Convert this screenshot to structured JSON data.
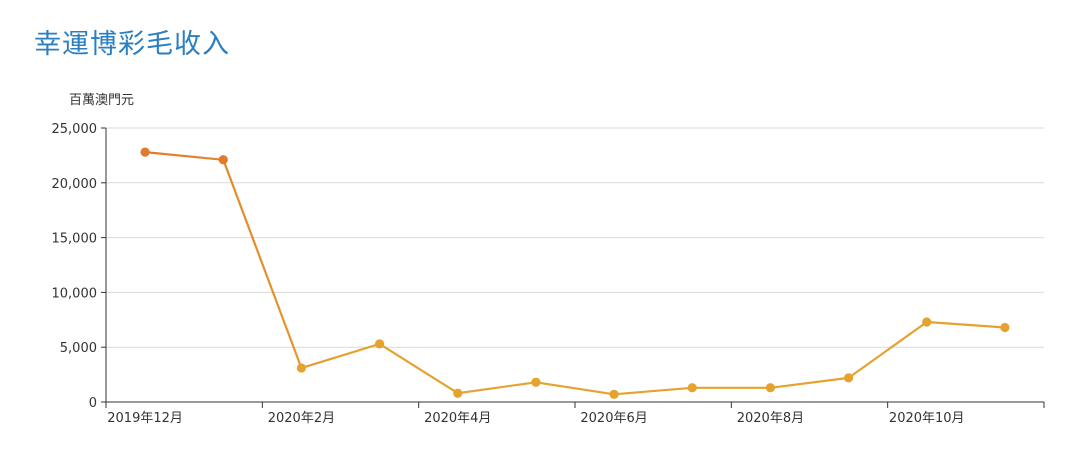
{
  "chart_data": {
    "type": "line",
    "title": "幸運博彩毛收入",
    "ylabel": "百萬澳門元",
    "xlabel": "",
    "ylim": [
      0,
      25000
    ],
    "yticks": [
      0,
      5000,
      10000,
      15000,
      20000,
      25000
    ],
    "ytick_labels": [
      "0",
      "5,000",
      "10,000",
      "15,000",
      "20,000",
      "25,000"
    ],
    "x": [
      "2019-12",
      "2020-01",
      "2020-02",
      "2020-03",
      "2020-04",
      "2020-05",
      "2020-06",
      "2020-07",
      "2020-08",
      "2020-09",
      "2020-10",
      "2020-11"
    ],
    "xtick_labels": [
      {
        "index": 0,
        "label": "2019年12月"
      },
      {
        "index": 2,
        "label": "2020年2月"
      },
      {
        "index": 4,
        "label": "2020年4月"
      },
      {
        "index": 6,
        "label": "2020年6月"
      },
      {
        "index": 8,
        "label": "2020年8月"
      },
      {
        "index": 10,
        "label": "2020年10月"
      }
    ],
    "series": [
      {
        "values": [
          22800,
          22100,
          3100,
          5300,
          800,
          1800,
          700,
          1300,
          1300,
          2200,
          7300,
          6800
        ]
      }
    ],
    "grid": true,
    "colors": {
      "start": "#e07a2e",
      "end": "#e6a22e",
      "grid": "#d9d9d9",
      "axis": "#333333",
      "title": "#2b7fc1"
    }
  }
}
